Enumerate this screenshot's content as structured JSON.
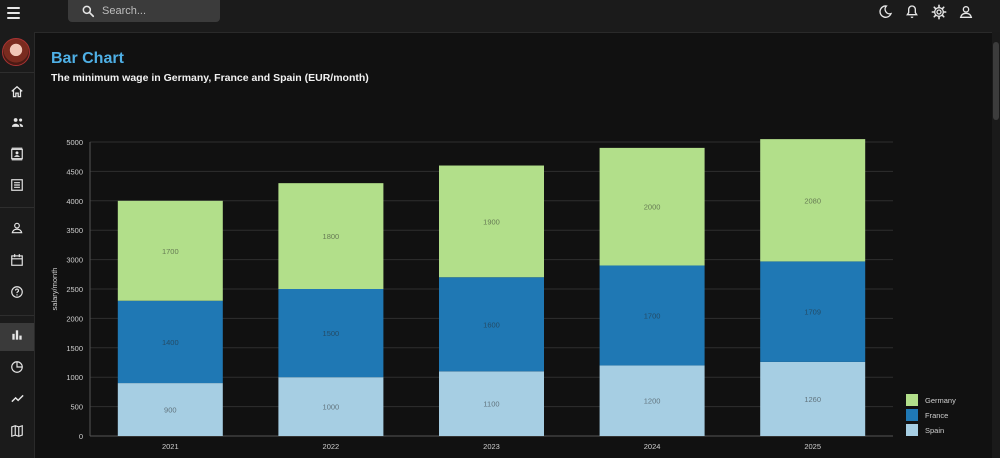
{
  "search": {
    "placeholder": "Search..."
  },
  "header": {
    "title": "Bar Chart",
    "subtitle": "The minimum wage in Germany, France and Spain (EUR/month)"
  },
  "icons": {
    "top": [
      "dark-mode-icon",
      "notifications-icon",
      "settings-icon",
      "account-icon"
    ],
    "sidebar": [
      "home-icon",
      "users-icon",
      "contacts-icon",
      "list-icon",
      "profile-icon",
      "calendar-icon",
      "help-icon",
      "bar-chart-icon",
      "pie-chart-icon",
      "line-chart-icon",
      "map-icon"
    ]
  },
  "colors": {
    "accent": "#4fb0e6",
    "germany": "#b2df8a",
    "france": "#1f78b4",
    "spain": "#a6cee3"
  },
  "chart_data": {
    "type": "bar",
    "stacked": true,
    "categories": [
      "2021",
      "2022",
      "2023",
      "2024",
      "2025"
    ],
    "series": [
      {
        "name": "Spain",
        "values": [
          900,
          1000,
          1100,
          1200,
          1260
        ],
        "color": "#a6cee3"
      },
      {
        "name": "France",
        "values": [
          1400,
          1500,
          1600,
          1700,
          1709
        ],
        "color": "#1f78b4"
      },
      {
        "name": "Germany",
        "values": [
          1700,
          1800,
          1900,
          2000,
          2080
        ],
        "color": "#b2df8a"
      }
    ],
    "ylabel": "salary/month",
    "ylim": [
      0,
      5000
    ],
    "yticks": [
      0,
      500,
      1000,
      1500,
      2000,
      2500,
      3000,
      3500,
      4000,
      4500,
      5000
    ],
    "grid": true,
    "legend": {
      "placement": "bottom-right",
      "order": [
        "Germany",
        "France",
        "Spain"
      ]
    }
  }
}
